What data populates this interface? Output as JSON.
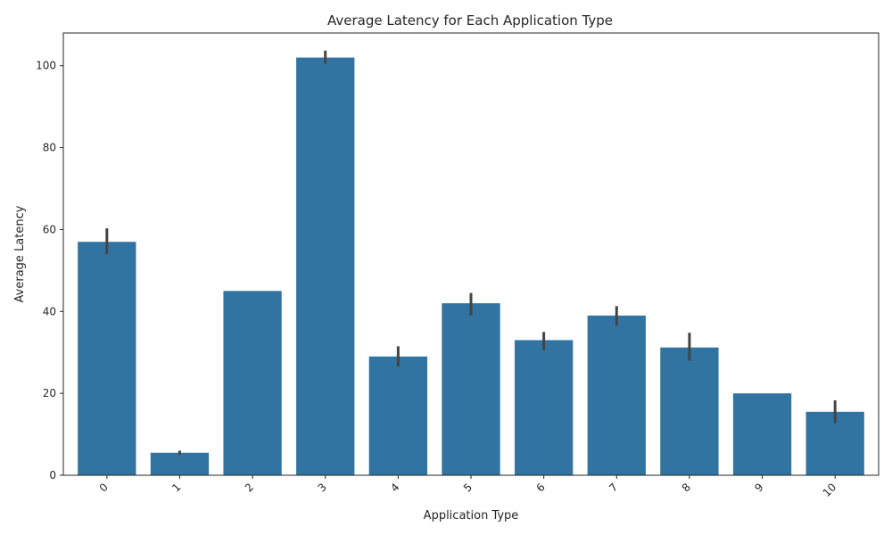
{
  "chart_data": {
    "type": "bar",
    "title": "Average Latency for Each Application Type",
    "xlabel": "Application Type",
    "ylabel": "Average Latency",
    "categories": [
      "0",
      "1",
      "2",
      "3",
      "4",
      "5",
      "6",
      "7",
      "8",
      "9",
      "10"
    ],
    "values": [
      57,
      5.5,
      45,
      102,
      29,
      42,
      33,
      39,
      31.2,
      20,
      15.5
    ],
    "error_low": [
      54,
      5.0,
      45,
      100.5,
      26.5,
      39,
      30.5,
      36.5,
      28,
      20,
      12.7
    ],
    "error_high": [
      60.3,
      6.0,
      45,
      103.7,
      31.5,
      44.5,
      35,
      41.3,
      34.8,
      20,
      18.3
    ],
    "ylim": [
      0,
      108
    ],
    "yticks": [
      0,
      20,
      40,
      60,
      80,
      100
    ],
    "bar_color": "#3274a1",
    "error_color": "#444444",
    "grid": false
  }
}
